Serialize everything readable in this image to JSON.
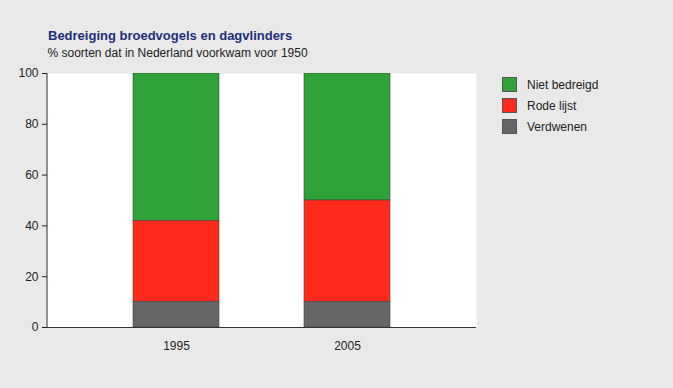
{
  "chart_data": {
    "type": "bar",
    "title": "Bedreiging broedvogels en dagvlinders",
    "ylabel": "% soorten dat in Nederland voorkwam voor 1950",
    "categories": [
      "1995",
      "2005"
    ],
    "series": [
      {
        "name": "Niet bedreigd",
        "color": "#2fa23a",
        "values": [
          58,
          50
        ]
      },
      {
        "name": "Rode lijst",
        "color": "#ff2a1c",
        "values": [
          32,
          40
        ]
      },
      {
        "name": "Verdwenen",
        "color": "#666666",
        "values": [
          10,
          10
        ]
      }
    ],
    "stacked": true,
    "ylim": [
      0,
      100
    ],
    "yticks": [
      0,
      20,
      40,
      60,
      80,
      100
    ],
    "grid": false,
    "legend": "right"
  }
}
